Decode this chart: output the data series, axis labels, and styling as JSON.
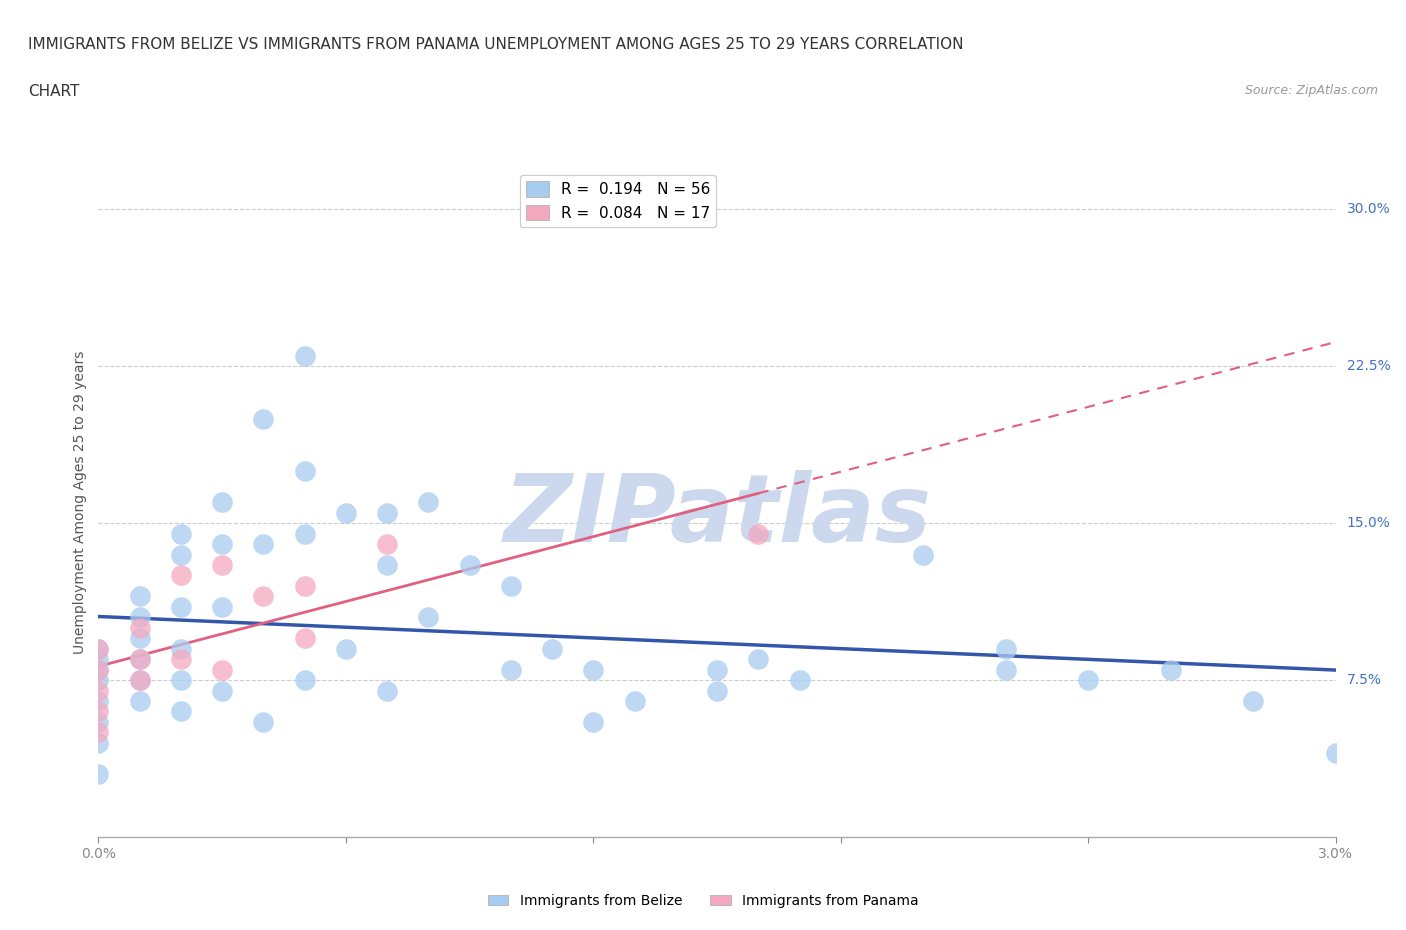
{
  "title_line1": "IMMIGRANTS FROM BELIZE VS IMMIGRANTS FROM PANAMA UNEMPLOYMENT AMONG AGES 25 TO 29 YEARS CORRELATION",
  "title_line2": "CHART",
  "source": "Source: ZipAtlas.com",
  "ylabel": "Unemployment Among Ages 25 to 29 years",
  "xlim": [
    0.0,
    0.03
  ],
  "ylim": [
    0.0,
    0.32
  ],
  "belize_R": 0.194,
  "belize_N": 56,
  "panama_R": 0.084,
  "panama_N": 17,
  "belize_color": "#A8CCF0",
  "panama_color": "#F4A8C0",
  "belize_line_color": "#3355AA",
  "panama_line_color": "#E06080",
  "background_color": "#ffffff",
  "grid_color": "#cccccc",
  "belize_x": [
    0.0,
    0.0,
    0.0,
    0.0,
    0.0,
    0.0,
    0.0,
    0.0,
    0.001,
    0.001,
    0.001,
    0.001,
    0.001,
    0.001,
    0.002,
    0.002,
    0.002,
    0.002,
    0.002,
    0.002,
    0.003,
    0.003,
    0.003,
    0.003,
    0.004,
    0.004,
    0.004,
    0.005,
    0.005,
    0.005,
    0.005,
    0.006,
    0.006,
    0.007,
    0.007,
    0.007,
    0.008,
    0.008,
    0.009,
    0.01,
    0.01,
    0.011,
    0.012,
    0.012,
    0.013,
    0.015,
    0.015,
    0.016,
    0.017,
    0.02,
    0.022,
    0.022,
    0.024,
    0.026,
    0.028,
    0.03
  ],
  "belize_y": [
    0.09,
    0.085,
    0.08,
    0.075,
    0.065,
    0.055,
    0.045,
    0.03,
    0.115,
    0.105,
    0.095,
    0.085,
    0.075,
    0.065,
    0.145,
    0.135,
    0.11,
    0.09,
    0.075,
    0.06,
    0.16,
    0.14,
    0.11,
    0.07,
    0.2,
    0.14,
    0.055,
    0.23,
    0.175,
    0.145,
    0.075,
    0.155,
    0.09,
    0.155,
    0.13,
    0.07,
    0.16,
    0.105,
    0.13,
    0.12,
    0.08,
    0.09,
    0.08,
    0.055,
    0.065,
    0.08,
    0.07,
    0.085,
    0.075,
    0.135,
    0.09,
    0.08,
    0.075,
    0.08,
    0.065,
    0.04
  ],
  "panama_x": [
    0.0,
    0.0,
    0.0,
    0.0,
    0.0,
    0.001,
    0.001,
    0.001,
    0.002,
    0.002,
    0.003,
    0.003,
    0.004,
    0.005,
    0.005,
    0.007,
    0.016
  ],
  "panama_y": [
    0.09,
    0.08,
    0.07,
    0.06,
    0.05,
    0.1,
    0.085,
    0.075,
    0.125,
    0.085,
    0.13,
    0.08,
    0.115,
    0.12,
    0.095,
    0.14,
    0.145
  ],
  "watermark": "ZIPatlas",
  "watermark_color": "#ccd8ee"
}
